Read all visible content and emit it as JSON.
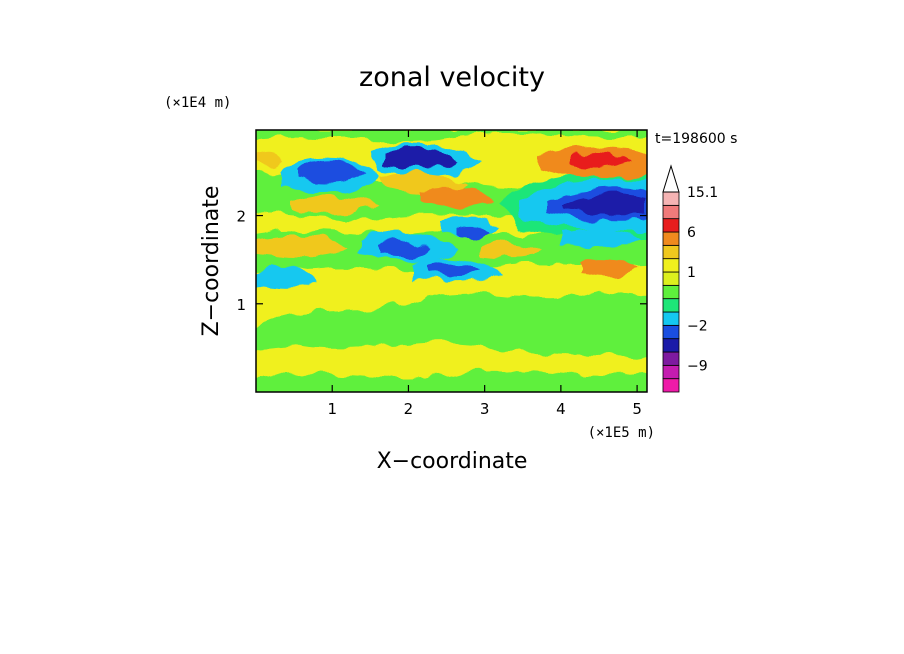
{
  "chart_data": {
    "type": "heatmap",
    "title": "zonal velocity",
    "xlabel": "X−coordinate",
    "ylabel": "Z−coordinate",
    "x_scale_label": "(×1E5 m)",
    "y_scale_label": "(×1E4 m)",
    "time_label": "t=198600 s",
    "xlim": [
      0,
      5.13
    ],
    "ylim": [
      0,
      2.97
    ],
    "x_ticks": [
      "1",
      "2",
      "3",
      "4",
      "5"
    ],
    "x_tick_values": [
      1,
      2,
      3,
      4,
      5
    ],
    "y_ticks": [
      "1",
      "2"
    ],
    "y_tick_values": [
      1,
      2
    ],
    "colorbar": {
      "labels": [
        "15.1",
        "6",
        "1",
        "−2",
        "−9"
      ],
      "label_values": [
        15.1,
        6,
        1,
        -2,
        -9
      ],
      "levels_bottom_to_top": [
        -15,
        -12,
        -9,
        -6,
        -4,
        -2,
        -1,
        0,
        0.5,
        1,
        2,
        4,
        6,
        9,
        12,
        15.1
      ],
      "colors_bottom_to_top": [
        "#ee1aa8",
        "#c41cb0",
        "#7e1aa0",
        "#1a1aa8",
        "#1a4ee0",
        "#14c8f0",
        "#1ee678",
        "#5ef03c",
        "#dcf01e",
        "#f0f01e",
        "#f0c81e",
        "#f08a1e",
        "#e81e1e",
        "#f07a7a",
        "#f5b4b4",
        "#ffffff"
      ]
    },
    "features": [
      {
        "x": 1.9,
        "z": 2.65,
        "value": -6
      },
      {
        "x": 2.2,
        "z": 2.72,
        "value": -6
      },
      {
        "x": 1.7,
        "z": 2.45,
        "value": 4
      },
      {
        "x": 2.2,
        "z": 2.2,
        "value": 6
      },
      {
        "x": 4.6,
        "z": 2.15,
        "value": -9
      },
      {
        "x": 4.2,
        "z": 2.65,
        "value": 6
      },
      {
        "x": 1.0,
        "z": 2.5,
        "value": -6
      },
      {
        "x": 1.3,
        "z": 2.0,
        "value": 4
      },
      {
        "x": 2.5,
        "z": 1.7,
        "value": -6
      },
      {
        "x": 2.8,
        "z": 1.35,
        "value": -6
      },
      {
        "x": 4.4,
        "z": 1.4,
        "value": 4
      },
      {
        "x": 0.6,
        "z": 1.6,
        "value": 2
      }
    ]
  }
}
